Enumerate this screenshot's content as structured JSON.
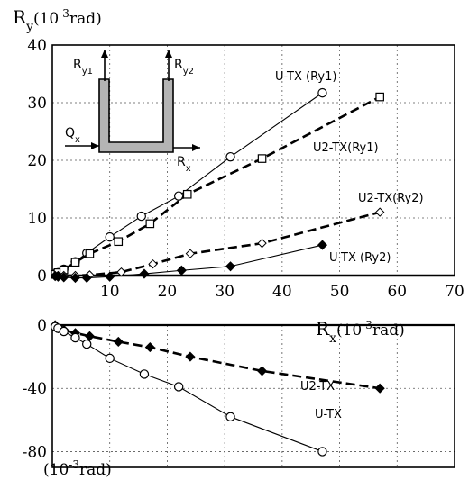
{
  "chart_data": [
    {
      "type": "line",
      "panel": "upper",
      "ylabel": {
        "base": "R",
        "sub": "y",
        "unit_pre": "(10",
        "unit_exp": "-3",
        "unit_post": "rad)"
      },
      "xlabel": {
        "base": "R",
        "sub": "x",
        "unit_pre": "(10",
        "unit_exp": "-3",
        "unit_post": "rad)"
      },
      "xlim": [
        0,
        70
      ],
      "ylim": [
        0,
        40
      ],
      "x_ticks": [
        "0",
        "10",
        "20",
        "30",
        "40",
        "50",
        "60",
        "70"
      ],
      "y_ticks": [
        "0",
        "10",
        "20",
        "30",
        "40"
      ],
      "grid": true,
      "series": [
        {
          "name": "U-TX (Ry1)",
          "marker": "open-circle",
          "line": "solid",
          "x": [
            0.5,
            1,
            2,
            4,
            6,
            10,
            15.5,
            22,
            31,
            47
          ],
          "y": [
            0.3,
            0.5,
            1.1,
            2.4,
            3.9,
            6.7,
            10.3,
            13.8,
            20.6,
            31.7
          ]
        },
        {
          "name": "U2-TX(Ry1)",
          "marker": "open-square",
          "line": "dashed",
          "x": [
            0.5,
            1,
            2,
            4,
            6.5,
            11.5,
            17,
            23.5,
            36.5,
            57
          ],
          "y": [
            0.2,
            0.5,
            1.0,
            2.3,
            3.8,
            5.9,
            9.0,
            14.1,
            20.3,
            31.0
          ]
        },
        {
          "name": "U2-TX(Ry2)",
          "marker": "open-diamond",
          "line": "dashed",
          "x": [
            0.5,
            1,
            2,
            4,
            6.5,
            12,
            17.5,
            24,
            36.5,
            57
          ],
          "y": [
            0,
            0,
            0,
            0,
            0.1,
            0.6,
            2.0,
            3.8,
            5.6,
            11.0
          ]
        },
        {
          "name": "U-TX (Ry2)",
          "marker": "filled-diamond",
          "line": "solid",
          "x": [
            0.5,
            1,
            2,
            4,
            6,
            10,
            16,
            22.5,
            31,
            47
          ],
          "y": [
            -0.1,
            -0.2,
            -0.3,
            -0.4,
            -0.4,
            -0.2,
            0.3,
            0.9,
            1.6,
            5.3
          ]
        }
      ],
      "inset": {
        "labels": {
          "ry1": {
            "base": "R",
            "sub": "y1"
          },
          "ry2": {
            "base": "R",
            "sub": "y2"
          },
          "qx": {
            "base": "Q",
            "sub": "x"
          },
          "rx": {
            "base": "R",
            "sub": "x"
          }
        },
        "fill_color": "#b4b4b4"
      }
    },
    {
      "type": "line",
      "panel": "lower",
      "unit_label": {
        "pre": "(10",
        "exp": "-3",
        "post": "rad)"
      },
      "xlim": [
        0,
        70
      ],
      "ylim": [
        -90,
        0
      ],
      "y_ticks": [
        "0",
        "-40",
        "-80"
      ],
      "grid": true,
      "series": [
        {
          "name": "U2-TX",
          "marker": "filled-diamond",
          "line": "dashed",
          "x": [
            0.5,
            1,
            2,
            4,
            6.5,
            11.5,
            17,
            24,
            36.5,
            57
          ],
          "y": [
            0,
            -2,
            -3,
            -5,
            -7,
            -10.5,
            -14,
            -20,
            -29,
            -40
          ]
        },
        {
          "name": "U-TX",
          "marker": "open-circle",
          "line": "solid",
          "x": [
            0.5,
            1,
            2,
            4,
            6,
            10,
            16,
            22,
            31,
            47
          ],
          "y": [
            -1,
            -2,
            -4,
            -8,
            -12,
            -21,
            -31,
            -39,
            -58,
            -80
          ]
        }
      ]
    }
  ]
}
